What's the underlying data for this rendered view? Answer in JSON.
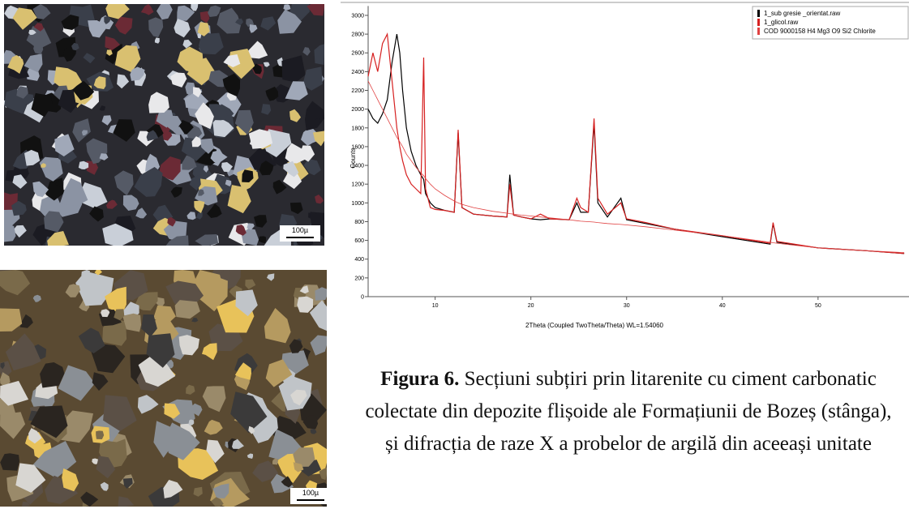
{
  "figure": {
    "label": "Figura 6.",
    "caption": "Secțiuni subțiri prin litarenite cu ciment carbonatic colectate din depozite flișoide ale Formațiunii de Bozeș (stânga), și difracția de raze X a probelor de argilă din aceeași unitate"
  },
  "micrographs": [
    {
      "scale_label": "100µ"
    },
    {
      "scale_label": "100µ"
    }
  ],
  "chart_data": {
    "type": "line",
    "x_label": "2Theta (Coupled TwoTheta/Theta) WL=1.54060",
    "y_label": "Counts",
    "x": [
      3,
      3.5,
      4,
      4.5,
      5,
      5.5,
      6,
      6.3,
      6.6,
      7,
      7.5,
      8,
      8.5,
      8.8,
      9,
      9.5,
      10,
      11,
      12,
      12.4,
      12.8,
      14,
      16,
      17.5,
      17.8,
      18.2,
      19,
      20,
      21,
      22,
      24,
      24.8,
      25.2,
      26,
      26.6,
      27,
      28,
      29.4,
      30,
      32,
      35,
      40,
      45,
      45.3,
      45.7,
      50,
      55,
      59
    ],
    "series": [
      {
        "name": "1_sub gresie _orientat.raw",
        "color": "#000000",
        "values": [
          2000,
          1900,
          1850,
          1950,
          2100,
          2500,
          2800,
          2600,
          2200,
          1800,
          1550,
          1400,
          1300,
          1250,
          1100,
          1000,
          950,
          920,
          900,
          1750,
          950,
          880,
          860,
          850,
          1300,
          870,
          850,
          830,
          820,
          830,
          820,
          1000,
          900,
          900,
          1850,
          1000,
          850,
          1050,
          820,
          780,
          720,
          640,
          560,
          780,
          580,
          520,
          490,
          460
        ]
      },
      {
        "name": "1_glicol.raw",
        "color": "#d62020",
        "values": [
          2350,
          2600,
          2400,
          2700,
          2800,
          2300,
          1800,
          1600,
          1450,
          1300,
          1200,
          1150,
          1100,
          2550,
          1150,
          950,
          930,
          920,
          900,
          1780,
          950,
          880,
          860,
          850,
          1200,
          870,
          850,
          830,
          880,
          830,
          820,
          1050,
          950,
          900,
          1900,
          1050,
          880,
          1000,
          830,
          790,
          720,
          650,
          570,
          790,
          590,
          520,
          490,
          460
        ]
      },
      {
        "name": "COD 9000158 H4 Mg3 O9 Si2 Chlorite",
        "color": "#e04040",
        "values": [
          2300,
          2200,
          2100,
          2000,
          1900,
          1800,
          1700,
          1650,
          1600,
          1520,
          1450,
          1380,
          1320,
          1290,
          1260,
          1200,
          1150,
          1080,
          1020,
          1000,
          985,
          950,
          910,
          890,
          885,
          880,
          870,
          860,
          850,
          840,
          820,
          810,
          805,
          800,
          795,
          790,
          780,
          770,
          765,
          745,
          710,
          650,
          580,
          575,
          570,
          520,
          490,
          470
        ]
      }
    ],
    "xlim": [
      3,
      59.5
    ],
    "ylim": [
      0,
      3100
    ],
    "xticks": [
      10,
      20,
      30,
      40,
      50
    ],
    "yticks": [
      0,
      200,
      400,
      600,
      800,
      1000,
      1200,
      1400,
      1600,
      1800,
      2000,
      2200,
      2400,
      2600,
      2800,
      3000
    ],
    "grid": false,
    "legend": "top-right"
  }
}
